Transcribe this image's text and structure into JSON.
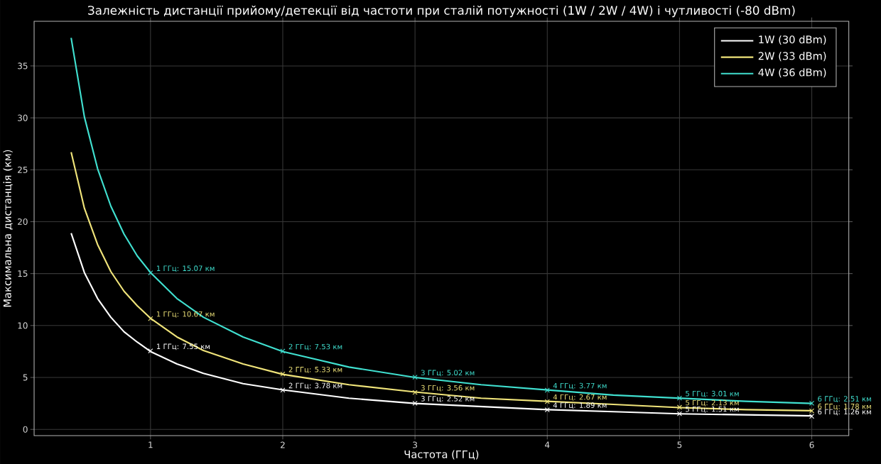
{
  "chart_data": {
    "type": "line",
    "title": "Залежність дистанції прийому/детекції від частоти при сталій потужності (1W / 2W / 4W) і чутливості (-80 dBm)",
    "xlabel": "Частота (ГГц)",
    "ylabel": "Максимальна дистанція (км)",
    "x": [
      0.4,
      0.5,
      0.6,
      0.7,
      0.8,
      0.9,
      1,
      1.2,
      1.4,
      1.7,
      2,
      2.5,
      3,
      3.5,
      4,
      4.5,
      5,
      5.5,
      6
    ],
    "series": [
      {
        "name": "1W (30 dBm)",
        "color": "#ffffff",
        "values": [
          18.9,
          15.1,
          12.6,
          10.8,
          9.4,
          8.4,
          7.5,
          6.3,
          5.4,
          4.4,
          3.8,
          3.0,
          2.5,
          2.2,
          1.9,
          1.7,
          1.5,
          1.4,
          1.3
        ]
      },
      {
        "name": "2W (33 dBm)",
        "color": "#f0e47a",
        "values": [
          26.7,
          21.3,
          17.8,
          15.2,
          13.3,
          11.9,
          10.7,
          8.9,
          7.6,
          6.3,
          5.3,
          4.3,
          3.6,
          3.0,
          2.7,
          2.4,
          2.1,
          1.9,
          1.8
        ]
      },
      {
        "name": "4W (36 dBm)",
        "color": "#40e0d0",
        "values": [
          37.7,
          30.1,
          25.1,
          21.5,
          18.8,
          16.7,
          15.1,
          12.6,
          10.8,
          8.9,
          7.5,
          6.0,
          5.0,
          4.3,
          3.8,
          3.3,
          3.0,
          2.7,
          2.5
        ]
      },
      {
        "type": "scatter",
        "marker": "cross",
        "color": "#ffffff",
        "x": [
          1,
          2,
          3,
          4,
          5,
          6
        ],
        "values": [
          7.55,
          3.78,
          2.52,
          1.89,
          1.51,
          1.26
        ]
      },
      {
        "type": "scatter",
        "marker": "cross",
        "color": "#f0e47a",
        "x": [
          1,
          2,
          3,
          4,
          5,
          6
        ],
        "values": [
          10.67,
          5.33,
          3.56,
          2.67,
          2.13,
          1.78
        ]
      },
      {
        "type": "scatter",
        "marker": "cross",
        "color": "#40e0d0",
        "x": [
          1,
          2,
          3,
          4,
          5,
          6
        ],
        "values": [
          15.07,
          7.53,
          5.02,
          3.77,
          3.01,
          2.51
        ]
      }
    ],
    "xlim": [
      0.12,
      6.28
    ],
    "ylim": [
      -0.6,
      39.3
    ],
    "xticks": [
      1,
      2,
      3,
      4,
      5,
      6
    ],
    "yticks": [
      0,
      5,
      10,
      15,
      20,
      25,
      30,
      35
    ],
    "grid": true,
    "legend": "top right",
    "marker": "none",
    "line_style": "solid",
    "annotations": [
      {
        "text": "1 ГГц: 7.55 км",
        "x": 1,
        "y": 7.55
      },
      {
        "text": "2 ГГц: 3.78 км",
        "x": 2,
        "y": 3.78
      },
      {
        "text": "3 ГГц: 2.52 км",
        "x": 3,
        "y": 2.52
      },
      {
        "text": "4 ГГц: 1.89 км",
        "x": 4,
        "y": 1.89
      },
      {
        "text": "5 ГГц: 1.51 км",
        "x": 5,
        "y": 1.51
      },
      {
        "text": "6 ГГц: 1.26 км",
        "x": 6,
        "y": 1.26
      },
      {
        "text": "1 ГГц: 10.67 км",
        "x": 1,
        "y": 10.67
      },
      {
        "text": "2 ГГц: 5.33 км",
        "x": 2,
        "y": 5.33
      },
      {
        "text": "3 ГГц: 3.56 км",
        "x": 3,
        "y": 3.56
      },
      {
        "text": "4 ГГц: 2.67 км",
        "x": 4,
        "y": 2.67
      },
      {
        "text": "5 ГГц: 2.13 км",
        "x": 5,
        "y": 2.13
      },
      {
        "text": "6 ГГц: 1.78 км",
        "x": 6,
        "y": 1.78
      },
      {
        "text": "1 ГГц: 15.07 км",
        "x": 1,
        "y": 15.07
      },
      {
        "text": "2 ГГц: 7.53 км",
        "x": 2,
        "y": 7.53
      },
      {
        "text": "3 ГГц: 5.02 км",
        "x": 3,
        "y": 5.02
      },
      {
        "text": "4 ГГц: 3.77 км",
        "x": 4,
        "y": 3.77
      },
      {
        "text": "5 ГГц: 3.01 км",
        "x": 5,
        "y": 3.01
      },
      {
        "text": "6 ГГц: 2.51 км",
        "x": 6,
        "y": 2.51
      }
    ]
  }
}
